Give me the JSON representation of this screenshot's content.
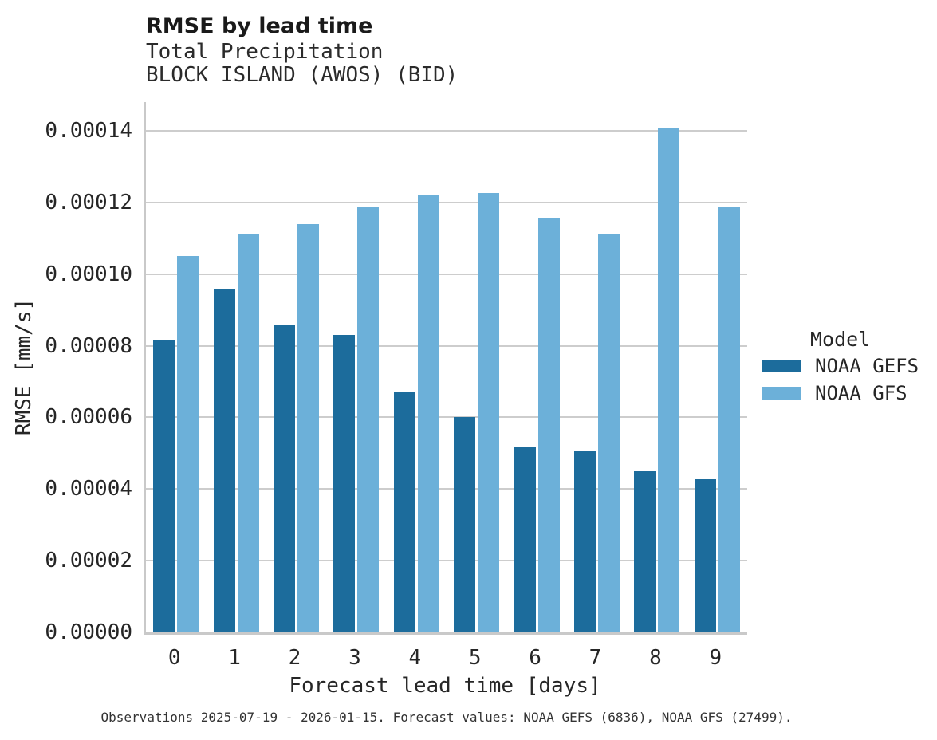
{
  "title": "RMSE by lead time",
  "subtitle_line1": "Total Precipitation",
  "subtitle_line2": "BLOCK ISLAND (AWOS) (BID)",
  "caption": "Observations 2025-07-19 - 2026-01-15. Forecast values: NOAA GEFS (6836), NOAA GFS (27499).",
  "legend": {
    "title": "Model",
    "entries": [
      {
        "label": "NOAA GEFS",
        "color": "#1c6c9c"
      },
      {
        "label": "NOAA GFS",
        "color": "#6cb0d9"
      }
    ]
  },
  "colors": {
    "noaa_gefs": "#1c6c9c",
    "noaa_gfs": "#6cb0d9",
    "gridline": "#cdcdcd",
    "spine": "#c9c9c9",
    "text": "#262626"
  },
  "chart_data": {
    "type": "bar",
    "title": "RMSE by lead time",
    "subtitle": [
      "Total Precipitation",
      "BLOCK ISLAND (AWOS) (BID)"
    ],
    "xlabel": "Forecast lead time [days]",
    "ylabel": "RMSE [mm/s]",
    "categories": [
      "0",
      "1",
      "2",
      "3",
      "4",
      "5",
      "6",
      "7",
      "8",
      "9"
    ],
    "series": [
      {
        "name": "NOAA GEFS",
        "color": "#1c6c9c",
        "values": [
          8.17e-05,
          9.57e-05,
          8.58e-05,
          8.3e-05,
          6.72e-05,
          6e-05,
          5.18e-05,
          5.06e-05,
          4.5e-05,
          4.28e-05
        ]
      },
      {
        "name": "NOAA GFS",
        "color": "#6cb0d9",
        "values": [
          0.000105,
          0.0001113,
          0.000114,
          0.0001188,
          0.0001223,
          0.0001227,
          0.0001157,
          0.0001114,
          0.000141,
          0.0001189
        ]
      }
    ],
    "ylim": [
      0,
      0.00014
    ],
    "yticks": [
      0,
      2e-05,
      4e-05,
      6e-05,
      8e-05,
      0.0001,
      0.00012,
      0.00014
    ],
    "ytick_labels": [
      "0.00000",
      "0.00002",
      "0.00004",
      "0.00006",
      "0.00008",
      "0.00010",
      "0.00012",
      "0.00014"
    ],
    "grid": true,
    "legend_position": "center-right",
    "legend_title": "Model"
  }
}
